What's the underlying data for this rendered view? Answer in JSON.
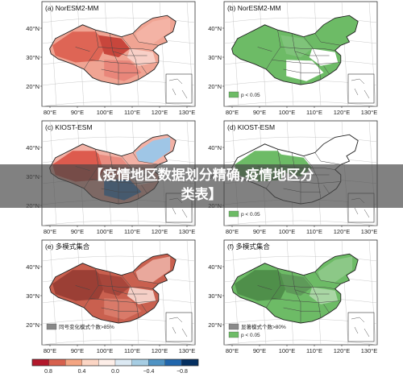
{
  "panels": [
    {
      "label": "(a) NorESM2-MM",
      "legend": "",
      "inset_title": ""
    },
    {
      "label": "(b) NorESM2-MM",
      "legend": "p < 0.05",
      "inset_title": ""
    },
    {
      "label": "(c) KIOST-ESM",
      "legend": "",
      "inset_title": ""
    },
    {
      "label": "(d) KIOST-ESM",
      "legend": "p < 0.05",
      "inset_title": ""
    },
    {
      "label": "(e) 多模式集合",
      "legend": "同号变化模式个数>85%",
      "inset_title": ""
    },
    {
      "label": "(f) 多模式集合",
      "legend": "显著模式个数>80%",
      "legend2": "p < 0.05",
      "inset_title": ""
    }
  ],
  "axes": {
    "lat_labels": [
      "40°N",
      "30°N",
      "20°N"
    ],
    "lon_labels": [
      "80°E",
      "90°E",
      "100°E",
      "110°E",
      "120°E",
      "130°E"
    ]
  },
  "colorbar": {
    "ticks": [
      "0.8",
      "0.4",
      "0.0",
      "−0.4",
      "−0.8"
    ],
    "colors": [
      "#b2182b",
      "#d6604d",
      "#f4a582",
      "#fbd5c4",
      "#fdeee8",
      "#dce9f3",
      "#a6cde3",
      "#4f93c3",
      "#2166ac",
      "#053061"
    ]
  },
  "overlay": {
    "line1": "【疫情地区数据划分精确,疫情地区分",
    "line2": "类表】"
  },
  "colors": {
    "red_strong": "#c0392b",
    "red_mid": "#e06a5a",
    "red_light": "#f2a99b",
    "green": "#6dbb66",
    "blue": "#4a87c5",
    "dark_red": "#8c3a30"
  }
}
